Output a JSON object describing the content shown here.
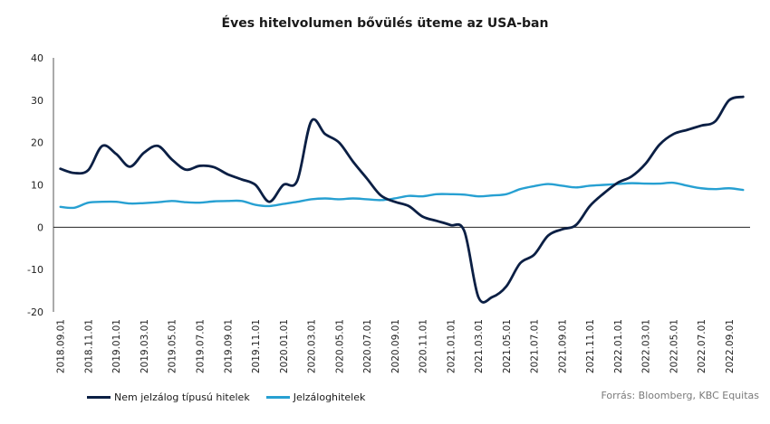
{
  "chart_data": {
    "type": "line",
    "title": "Éves hitelvolumen bővülés üteme az USA-ban",
    "ylim": [
      -20,
      40
    ],
    "yticks": [
      -20,
      -10,
      0,
      10,
      20,
      30,
      40
    ],
    "x_tick_labels": [
      "2018.09.01",
      "2018.11.01",
      "2019.01.01",
      "2019.03.01",
      "2019.05.01",
      "2019.07.01",
      "2019.09.01",
      "2019.11.01",
      "2020.01.01",
      "2020.03.01",
      "2020.05.01",
      "2020.07.01",
      "2020.09.01",
      "2020.11.01",
      "2021.01.01",
      "2021.03.01",
      "2021.05.01",
      "2021.07.01",
      "2021.09.01",
      "2021.11.01",
      "2022.01.01",
      "2022.03.01",
      "2022.05.01",
      "2022.07.01",
      "2022.09.01"
    ],
    "x": [
      "2018.09",
      "2018.10",
      "2018.11",
      "2018.12",
      "2019.01",
      "2019.02",
      "2019.03",
      "2019.04",
      "2019.05",
      "2019.06",
      "2019.07",
      "2019.08",
      "2019.09",
      "2019.10",
      "2019.11",
      "2019.12",
      "2020.01",
      "2020.02",
      "2020.03",
      "2020.04",
      "2020.05",
      "2020.06",
      "2020.07",
      "2020.08",
      "2020.09",
      "2020.10",
      "2020.11",
      "2020.12",
      "2021.01",
      "2021.02",
      "2021.03",
      "2021.04",
      "2021.05",
      "2021.06",
      "2021.07",
      "2021.08",
      "2021.09",
      "2021.10",
      "2021.11",
      "2021.12",
      "2022.01",
      "2022.02",
      "2022.03",
      "2022.04",
      "2022.05",
      "2022.06",
      "2022.07",
      "2022.08",
      "2022.09",
      "2022.10"
    ],
    "series": [
      {
        "name": "Nem jelzálog típusú hitelek",
        "color": "#0b1f44",
        "values": [
          13.8,
          12.8,
          13.5,
          19.2,
          17.3,
          14.3,
          17.6,
          19.2,
          16.0,
          13.6,
          14.5,
          14.2,
          12.5,
          11.3,
          10.0,
          6.0,
          10.0,
          11.0,
          25.0,
          22.0,
          20.0,
          15.5,
          11.5,
          7.5,
          6.0,
          5.0,
          2.5,
          1.5,
          0.5,
          -1.0,
          -16.5,
          -16.5,
          -14.0,
          -8.5,
          -6.5,
          -2.0,
          -0.5,
          0.5,
          5.0,
          8.0,
          10.5,
          12.0,
          15.0,
          19.5,
          22.0,
          23.0,
          24.0,
          25.0,
          30.0,
          30.8
        ]
      },
      {
        "name": "Jelzáloghitelek",
        "color": "#27a0d2",
        "values": [
          4.8,
          4.6,
          5.8,
          6.0,
          6.0,
          5.6,
          5.7,
          5.9,
          6.2,
          5.9,
          5.8,
          6.1,
          6.2,
          6.2,
          5.3,
          5.0,
          5.5,
          6.0,
          6.6,
          6.8,
          6.6,
          6.8,
          6.6,
          6.4,
          6.8,
          7.4,
          7.3,
          7.8,
          7.8,
          7.7,
          7.3,
          7.5,
          7.8,
          9.0,
          9.7,
          10.2,
          9.8,
          9.4,
          9.8,
          10.0,
          10.2,
          10.4,
          10.3,
          10.3,
          10.5,
          9.8,
          9.2,
          9.0,
          9.2,
          8.8
        ]
      }
    ],
    "legend_position": "bottom-left",
    "source": "Forrás: Bloomberg, KBC Equitas"
  }
}
